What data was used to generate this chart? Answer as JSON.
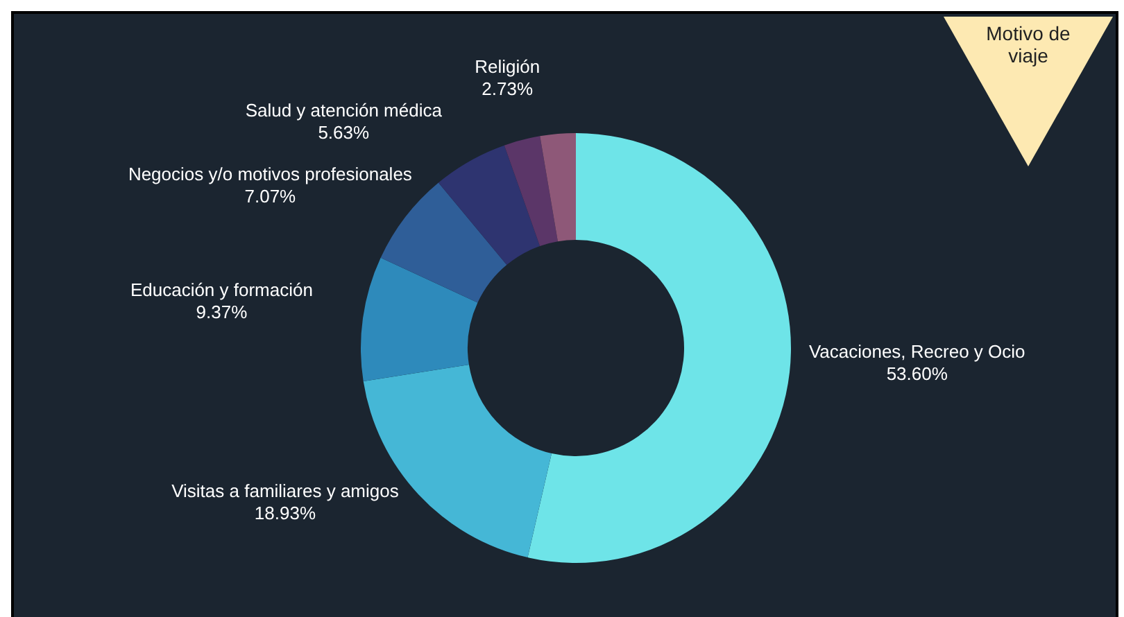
{
  "chart_data": {
    "type": "donut",
    "title": "Motivo de viaje",
    "categories": [
      "Vacaciones, Recreo y Ocio",
      "Visitas a familiares y amigos",
      "Educación y formación",
      "Negocios y/o motivos profesionales",
      "Salud y atención médica",
      "Religión",
      null
    ],
    "values": [
      53.6,
      18.93,
      9.37,
      7.07,
      5.63,
      2.73,
      2.67
    ],
    "value_labels": [
      "53.60%",
      "18.93%",
      "9.37%",
      "7.07%",
      "5.63%",
      "2.73%",
      null
    ],
    "colors": [
      "#6ee4e8",
      "#45b7d6",
      "#2e8abb",
      "#2f5e98",
      "#2e3470",
      "#5b3668",
      "#8e5878"
    ]
  }
}
